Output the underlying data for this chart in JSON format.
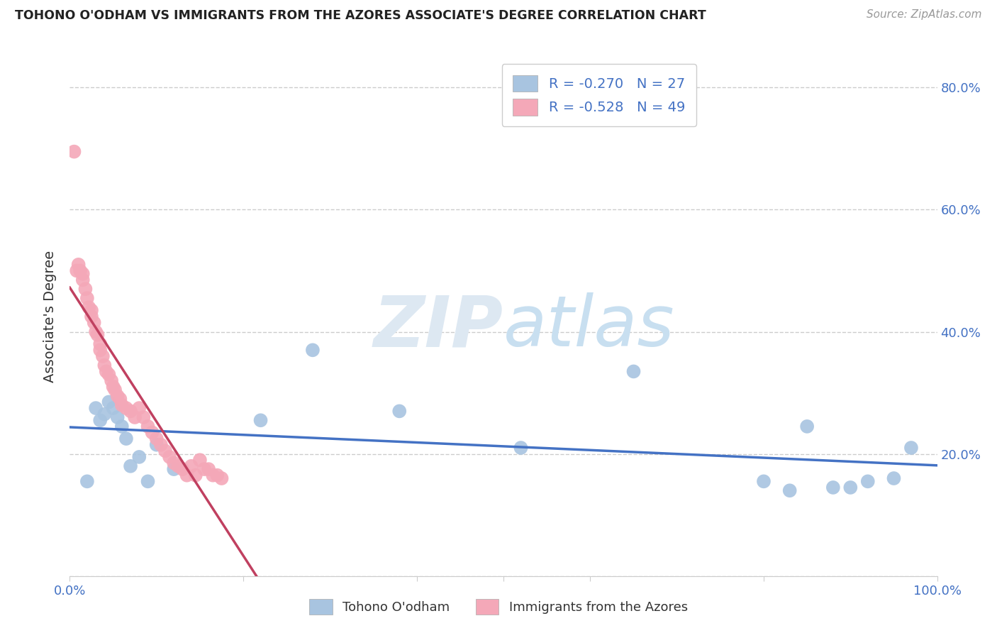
{
  "title": "TOHONO O'ODHAM VS IMMIGRANTS FROM THE AZORES ASSOCIATE'S DEGREE CORRELATION CHART",
  "source": "Source: ZipAtlas.com",
  "ylabel": "Associate's Degree",
  "xlim": [
    0,
    1.0
  ],
  "ylim": [
    0,
    0.85
  ],
  "legend_label1": "Tohono O'odham",
  "legend_label2": "Immigrants from the Azores",
  "R1": "-0.270",
  "N1": "27",
  "R2": "-0.528",
  "N2": "49",
  "color_blue": "#a8c4e0",
  "color_pink": "#f4a8b8",
  "trendline_blue": "#4472c4",
  "trendline_pink": "#c04060",
  "blue_points_x": [
    0.02,
    0.03,
    0.035,
    0.04,
    0.045,
    0.05,
    0.055,
    0.06,
    0.065,
    0.07,
    0.08,
    0.09,
    0.1,
    0.12,
    0.22,
    0.28,
    0.38,
    0.52,
    0.65,
    0.8,
    0.83,
    0.85,
    0.88,
    0.9,
    0.92,
    0.95,
    0.97
  ],
  "blue_points_y": [
    0.155,
    0.275,
    0.255,
    0.265,
    0.285,
    0.275,
    0.26,
    0.245,
    0.225,
    0.18,
    0.195,
    0.155,
    0.215,
    0.175,
    0.255,
    0.37,
    0.27,
    0.21,
    0.335,
    0.155,
    0.14,
    0.245,
    0.145,
    0.145,
    0.155,
    0.16,
    0.21
  ],
  "pink_points_x": [
    0.005,
    0.008,
    0.01,
    0.012,
    0.015,
    0.015,
    0.018,
    0.02,
    0.022,
    0.025,
    0.025,
    0.028,
    0.03,
    0.032,
    0.035,
    0.035,
    0.038,
    0.04,
    0.042,
    0.045,
    0.048,
    0.05,
    0.052,
    0.055,
    0.058,
    0.06,
    0.065,
    0.07,
    0.075,
    0.08,
    0.085,
    0.09,
    0.095,
    0.1,
    0.105,
    0.11,
    0.115,
    0.12,
    0.125,
    0.13,
    0.135,
    0.14,
    0.145,
    0.15,
    0.155,
    0.16,
    0.165,
    0.17,
    0.175
  ],
  "pink_points_y": [
    0.695,
    0.5,
    0.51,
    0.5,
    0.485,
    0.495,
    0.47,
    0.455,
    0.44,
    0.435,
    0.425,
    0.415,
    0.4,
    0.395,
    0.38,
    0.37,
    0.36,
    0.345,
    0.335,
    0.33,
    0.32,
    0.31,
    0.305,
    0.295,
    0.29,
    0.28,
    0.275,
    0.27,
    0.26,
    0.275,
    0.26,
    0.245,
    0.235,
    0.225,
    0.215,
    0.205,
    0.195,
    0.185,
    0.18,
    0.175,
    0.165,
    0.18,
    0.165,
    0.19,
    0.175,
    0.175,
    0.165,
    0.165,
    0.16
  ],
  "watermark_zip": "ZIP",
  "watermark_atlas": "atlas",
  "background_color": "#ffffff",
  "grid_color": "#cccccc",
  "axis_color": "#4472c4",
  "text_color": "#333333"
}
